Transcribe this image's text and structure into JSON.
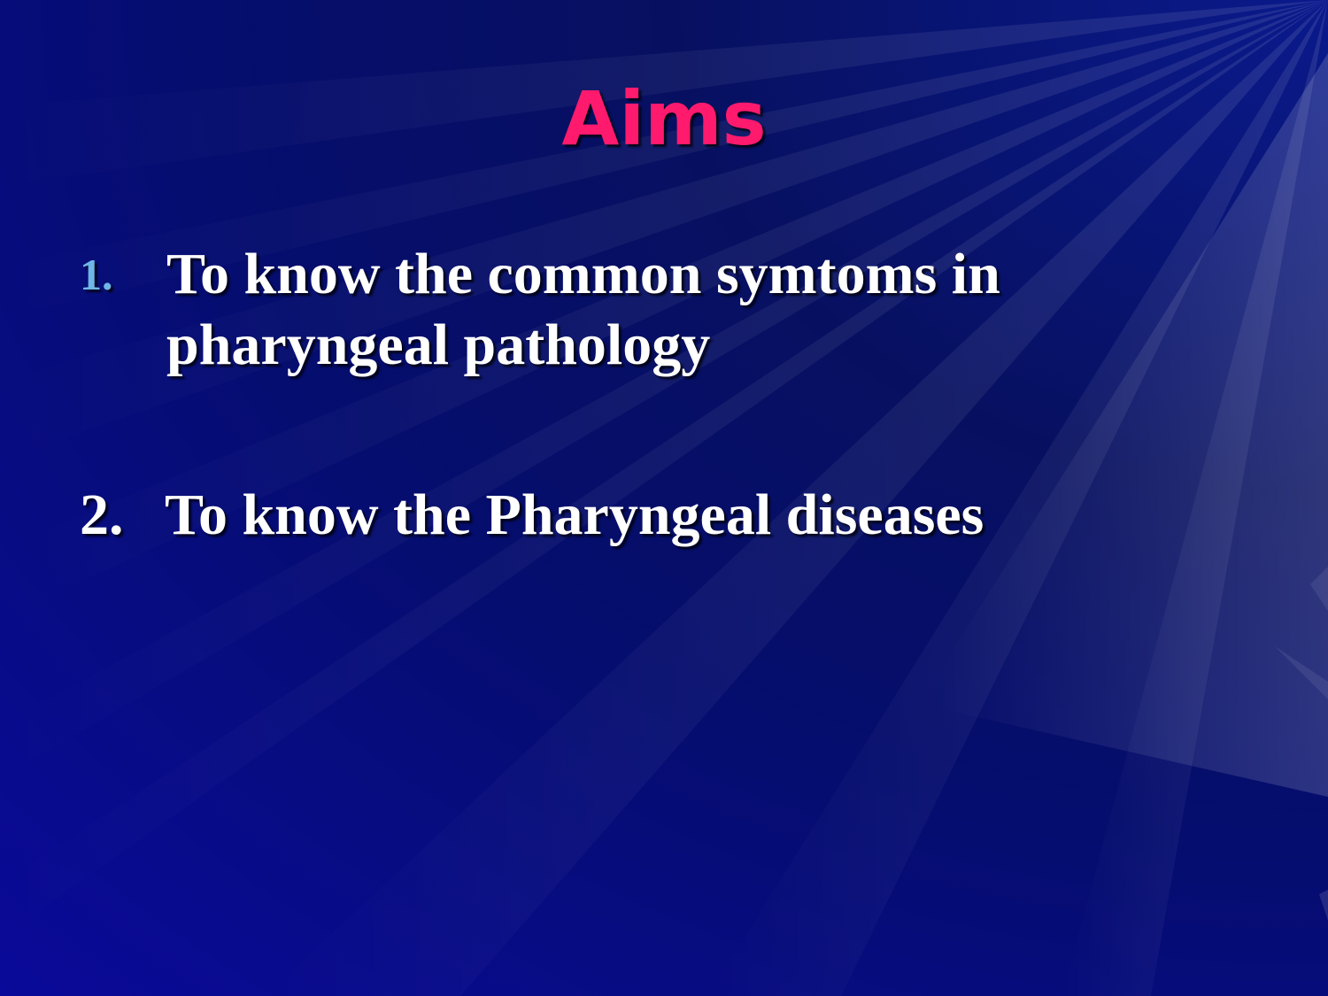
{
  "slide": {
    "title": "Aims",
    "items": [
      {
        "number": "1.",
        "text": "To know the common symtoms in pharyngeal pathology"
      },
      {
        "number": "2.",
        "text": "To know the Pharyngeal diseases"
      }
    ]
  },
  "colors": {
    "title": "#ff1a6e",
    "bullet_1": "#6fb6e6",
    "bullet_2": "#ffffff",
    "text": "#ffffff",
    "background": "#06108a"
  }
}
